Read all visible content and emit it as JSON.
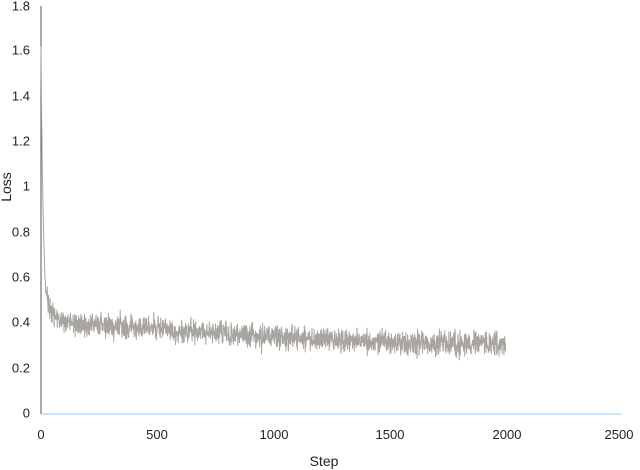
{
  "chart_data": {
    "type": "line",
    "title": "",
    "xlabel": "Step",
    "ylabel": "Loss",
    "xlim": [
      0,
      2500
    ],
    "ylim": [
      0,
      1.8
    ],
    "x_ticks": [
      "0",
      "500",
      "1000",
      "1500",
      "2000",
      "2500"
    ],
    "y_ticks": [
      "0",
      "0.2",
      "0.4",
      "0.6",
      "0.8",
      "1",
      "1.2",
      "1.4",
      "1.6",
      "1.8"
    ],
    "grid": false,
    "legend": "none",
    "colors": {
      "series": "#a8a4a0",
      "x_axis": "#9cc8e4",
      "y_axis": "#555555"
    },
    "series": [
      {
        "x_start": 0,
        "x_end": 2000,
        "trend": [
          [
            0,
            1.62
          ],
          [
            3,
            1.3
          ],
          [
            6,
            1.05
          ],
          [
            10,
            0.85
          ],
          [
            15,
            0.66
          ],
          [
            20,
            0.55
          ],
          [
            30,
            0.49
          ],
          [
            50,
            0.44
          ],
          [
            80,
            0.41
          ],
          [
            150,
            0.395
          ],
          [
            300,
            0.39
          ],
          [
            500,
            0.375
          ],
          [
            700,
            0.36
          ],
          [
            900,
            0.345
          ],
          [
            1100,
            0.335
          ],
          [
            1300,
            0.325
          ],
          [
            1500,
            0.317
          ],
          [
            1700,
            0.31
          ],
          [
            1850,
            0.305
          ],
          [
            2000,
            0.31
          ]
        ],
        "noise_amplitude": 0.025
      }
    ]
  }
}
